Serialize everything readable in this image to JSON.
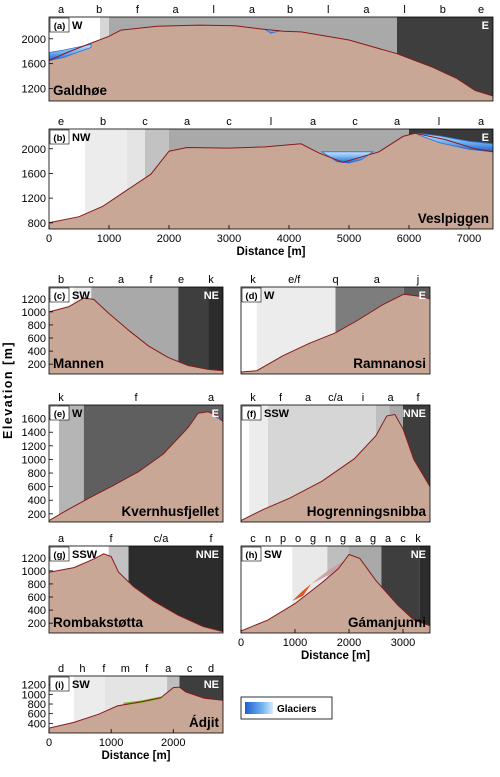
{
  "figure": {
    "y_axis_label": "Elevation [m]",
    "legend_label": "Glaciers",
    "colors": {
      "terrain": "#c9a796",
      "surface_line": "#8b1a1a",
      "glacier": "#2f6fd8",
      "glacier_light": "#9ecaf5",
      "orange_feature": "#e0571a",
      "green_feature": "#7cb82f",
      "zone_grays": {
        "l": "#a9a9a9",
        "a": "#5f5f5f",
        "b": "#7a7a7a",
        "e": "#3e3e3e",
        "f": "#d6d6d6",
        "c": "#c2c2c2",
        "k": "#2c2c2c",
        "q": "#7d7d7d",
        "j": "#5a5a5a",
        "m": "#e4e4e4",
        "d": "#3a3a3a",
        "h": "#ececec",
        "n": "#ffffff",
        "p": "#e9e9e9",
        "o": "#d9d9d9",
        "g": "#bebebe",
        "i": "#b5b5b5"
      }
    }
  },
  "chart_data": [
    {
      "type": "area",
      "panel": "(a)",
      "name": "Galdhøe",
      "dir_left": "W",
      "dir_right": "E",
      "xlim": [
        0,
        7400
      ],
      "ylim": [
        1000,
        2350
      ],
      "yticks": [
        1200,
        1600,
        2000
      ],
      "xticks": [],
      "xlabel": "",
      "zone_letters": [
        "a",
        "b",
        "f",
        "a",
        "l",
        "a",
        "b",
        "l",
        "a",
        "l",
        "b",
        "e"
      ],
      "zones": [
        [
          "n",
          0,
          850
        ],
        [
          "f",
          850,
          1000
        ],
        [
          "l",
          1000,
          5800
        ],
        [
          "e",
          5800,
          7400
        ]
      ],
      "profile_x": [
        0,
        300,
        700,
        1000,
        1200,
        1800,
        2500,
        3100,
        3500,
        3900,
        4200,
        5000,
        5800,
        6400,
        6800,
        7100,
        7400
      ],
      "profile_y": [
        1650,
        1780,
        1930,
        2040,
        2140,
        2200,
        2220,
        2210,
        2160,
        2120,
        2110,
        1980,
        1760,
        1540,
        1360,
        1170,
        1080
      ],
      "glaciers": [
        {
          "x": [
            0,
            250,
            500,
            700
          ],
          "top": [
            1780,
            1820,
            1870,
            1910
          ],
          "bottom": [
            1650,
            1700,
            1790,
            1860
          ]
        },
        {
          "x": [
            3600,
            3700,
            3850
          ],
          "top": [
            2150,
            2140,
            2130
          ],
          "bottom": [
            2150,
            2090,
            2130
          ]
        }
      ]
    },
    {
      "type": "area",
      "panel": "(b)",
      "name": "Veslpiggen",
      "dir_left": "NW",
      "dir_right": "E",
      "xlim": [
        0,
        7400
      ],
      "ylim": [
        700,
        2320
      ],
      "yticks": [
        800,
        1200,
        1600,
        2000
      ],
      "xticks": [
        0,
        1000,
        2000,
        3000,
        4000,
        5000,
        6000,
        7000
      ],
      "xlabel": "Distance [m]",
      "zone_letters": [
        "e",
        "b",
        "c",
        "a",
        "c",
        "l",
        "a",
        "c",
        "a",
        "l",
        "a"
      ],
      "zones": [
        [
          "n",
          0,
          600
        ],
        [
          "h",
          600,
          1300
        ],
        [
          "m",
          1300,
          1600
        ],
        [
          "c",
          1600,
          2000
        ],
        [
          "l",
          2000,
          6000
        ],
        [
          "d",
          6000,
          7400
        ]
      ],
      "profile_x": [
        0,
        500,
        900,
        1300,
        1700,
        2000,
        2300,
        3000,
        3600,
        4200,
        4500,
        4900,
        5500,
        5900,
        6100,
        6600,
        7100,
        7400
      ],
      "profile_y": [
        800,
        900,
        1070,
        1330,
        1590,
        1960,
        2020,
        2010,
        2030,
        2080,
        1930,
        1780,
        1950,
        2200,
        2250,
        2150,
        2000,
        1950
      ],
      "glaciers": [
        {
          "x": [
            4550,
            4800,
            5000,
            5200,
            5400
          ],
          "top": [
            1950,
            1950,
            1950,
            1950,
            1950
          ],
          "bottom": [
            1950,
            1790,
            1770,
            1820,
            1950
          ]
        },
        {
          "x": [
            6150,
            6500,
            7000,
            7400
          ],
          "top": [
            2250,
            2210,
            2120,
            2080
          ],
          "bottom": [
            2230,
            2100,
            1990,
            1950
          ]
        }
      ]
    },
    {
      "type": "area",
      "panel": "(c)",
      "name": "Mannen",
      "dir_left": "SW",
      "dir_right": "NE",
      "xlim": [
        0,
        3500
      ],
      "ylim": [
        50,
        1380
      ],
      "yticks": [
        200,
        400,
        600,
        800,
        1000,
        1200
      ],
      "xticks": [],
      "xlabel": "",
      "zone_letters": [
        "b",
        "c",
        "a",
        "f",
        "e",
        "k"
      ],
      "zones": [
        [
          "n",
          0,
          500
        ],
        [
          "p",
          500,
          850
        ],
        [
          "l",
          850,
          2600
        ],
        [
          "e",
          2600,
          3200
        ],
        [
          "k",
          3200,
          3500
        ]
      ],
      "profile_x": [
        0,
        400,
        700,
        900,
        1200,
        1600,
        2000,
        2400,
        2800,
        3200,
        3500
      ],
      "profile_y": [
        1000,
        1080,
        1210,
        1190,
        980,
        720,
        480,
        300,
        180,
        120,
        100
      ],
      "glaciers": []
    },
    {
      "type": "area",
      "panel": "(d)",
      "name": "Ramnanosi",
      "dir_left": "W",
      "dir_right": "E",
      "xlim": [
        0,
        3600
      ],
      "ylim": [
        50,
        1380
      ],
      "yticks": [],
      "xticks": [],
      "xlabel": "",
      "zone_letters": [
        "k",
        "e/f",
        "q",
        "a",
        "j"
      ],
      "zones": [
        [
          "n",
          0,
          300
        ],
        [
          "h",
          300,
          1800
        ],
        [
          "q",
          1800,
          3100
        ],
        [
          "j",
          3100,
          3600
        ]
      ],
      "profile_x": [
        0,
        300,
        800,
        1300,
        1800,
        2200,
        2700,
        3100,
        3400,
        3600
      ],
      "profile_y": [
        80,
        100,
        330,
        520,
        680,
        860,
        1110,
        1270,
        1240,
        1200
      ],
      "glaciers": []
    },
    {
      "type": "area",
      "panel": "(e)",
      "name": "Kvernhusfjellet",
      "dir_left": "W",
      "dir_right": "E",
      "xlim": [
        0,
        3500
      ],
      "ylim": [
        80,
        1800
      ],
      "yticks": [
        200,
        400,
        600,
        800,
        1000,
        1200,
        1400,
        1600
      ],
      "xticks": [],
      "xlabel": "",
      "zone_letters": [
        "k",
        "f",
        "a"
      ],
      "zones": [
        [
          "n",
          0,
          200
        ],
        [
          "i",
          200,
          700
        ],
        [
          "a",
          700,
          3500
        ]
      ],
      "profile_x": [
        0,
        400,
        800,
        1300,
        1800,
        2300,
        2800,
        3000,
        3200,
        3400,
        3500
      ],
      "profile_y": [
        100,
        270,
        430,
        620,
        820,
        1080,
        1470,
        1680,
        1700,
        1640,
        1560
      ],
      "glaciers": [
        {
          "x": [
            3350,
            3430,
            3500
          ],
          "top": [
            1660,
            1620,
            1580
          ],
          "bottom": [
            1630,
            1590,
            1560
          ]
        }
      ]
    },
    {
      "type": "area",
      "panel": "(f)",
      "name": "Hogrenningsnibba",
      "dir_left": "SSW",
      "dir_right": "NNE",
      "xlim": [
        0,
        3500
      ],
      "ylim": [
        80,
        1800
      ],
      "yticks": [],
      "xticks": [],
      "xlabel": "",
      "zone_letters": [
        "k",
        "f",
        "a",
        "c/a",
        "i",
        "a",
        "f"
      ],
      "zones": [
        [
          "n",
          0,
          150
        ],
        [
          "h",
          150,
          500
        ],
        [
          "f",
          500,
          2500
        ],
        [
          "g",
          2500,
          2750
        ],
        [
          "l",
          2750,
          3000
        ],
        [
          "e",
          3000,
          3500
        ]
      ],
      "profile_x": [
        0,
        400,
        900,
        1500,
        2100,
        2500,
        2700,
        2850,
        3000,
        3200,
        3500
      ],
      "profile_y": [
        100,
        260,
        430,
        680,
        1010,
        1350,
        1640,
        1660,
        1450,
        1000,
        600
      ],
      "glaciers": []
    },
    {
      "type": "area",
      "panel": "(g)",
      "name": "Rombakstøtta",
      "dir_left": "SSW",
      "dir_right": "NNE",
      "xlim": [
        0,
        3500
      ],
      "ylim": [
        50,
        1380
      ],
      "yticks": [
        200,
        400,
        600,
        800,
        1000,
        1200
      ],
      "xticks": [],
      "xlabel": "",
      "zone_letters": [
        "a",
        "f",
        "c/a",
        "f"
      ],
      "zones": [
        [
          "n",
          0,
          1200
        ],
        [
          "c",
          1200,
          1600
        ],
        [
          "k",
          1600,
          3500
        ]
      ],
      "profile_x": [
        0,
        500,
        900,
        1100,
        1250,
        1400,
        1700,
        2100,
        2600,
        3100,
        3500
      ],
      "profile_y": [
        980,
        1050,
        1180,
        1260,
        1220,
        980,
        760,
        540,
        320,
        150,
        70
      ],
      "glaciers": []
    },
    {
      "type": "area",
      "panel": "(h)",
      "name": "Gámanjunni",
      "dir_left": "SW",
      "dir_right": "NE",
      "xlim": [
        0,
        3500
      ],
      "ylim": [
        50,
        1380
      ],
      "yticks": [],
      "xticks": [
        0,
        1000,
        2000,
        3000
      ],
      "xlabel": "Distance [m]",
      "zone_letters": [
        "c",
        "n",
        "p",
        "o",
        "g",
        "n",
        "g",
        "a",
        "g",
        "a",
        "c",
        "k"
      ],
      "zones": [
        [
          "n",
          0,
          950
        ],
        [
          "p",
          950,
          1600
        ],
        [
          "g",
          1600,
          2000
        ],
        [
          "l",
          2000,
          2600
        ],
        [
          "e",
          2600,
          3300
        ],
        [
          "k",
          3300,
          3500
        ]
      ],
      "profile_x": [
        0,
        500,
        1000,
        1500,
        1800,
        2000,
        2200,
        2500,
        2900,
        3200,
        3500
      ],
      "profile_y": [
        80,
        250,
        500,
        820,
        1030,
        1250,
        1190,
        850,
        480,
        250,
        160
      ],
      "features": [
        {
          "color": "orange",
          "x": [
            950,
            1150,
            1300,
            1150,
            950
          ],
          "y": [
            540,
            700,
            800,
            620,
            540
          ]
        },
        {
          "color": "pink",
          "x": [
            1300,
            1600,
            1900,
            1800,
            1450,
            1300
          ],
          "y": [
            800,
            1000,
            1150,
            1020,
            860,
            800
          ]
        }
      ],
      "glaciers": []
    },
    {
      "type": "area",
      "panel": "(i)",
      "name": "Ádjit",
      "dir_left": "SW",
      "dir_right": "NE",
      "xlim": [
        0,
        2800
      ],
      "ylim": [
        200,
        1380
      ],
      "yticks": [
        400,
        600,
        800,
        1000,
        1200
      ],
      "xticks": [
        0,
        1000,
        2000
      ],
      "xlabel": "Distance [m]",
      "zone_letters": [
        "d",
        "h",
        "f",
        "m",
        "f",
        "a",
        "c",
        "d"
      ],
      "zones": [
        [
          "n",
          0,
          400
        ],
        [
          "h",
          400,
          900
        ],
        [
          "m",
          900,
          1900
        ],
        [
          "g",
          1900,
          2100
        ],
        [
          "e",
          2100,
          2800
        ]
      ],
      "profile_x": [
        0,
        400,
        800,
        1100,
        1500,
        1800,
        2000,
        2100,
        2200,
        2500,
        2800
      ],
      "profile_y": [
        300,
        420,
        590,
        760,
        850,
        930,
        1140,
        1150,
        1050,
        920,
        880
      ],
      "features": [
        {
          "color": "green",
          "x": [
            1200,
            1500,
            1800
          ],
          "y": [
            800,
            850,
            930
          ]
        }
      ],
      "glaciers": []
    }
  ]
}
